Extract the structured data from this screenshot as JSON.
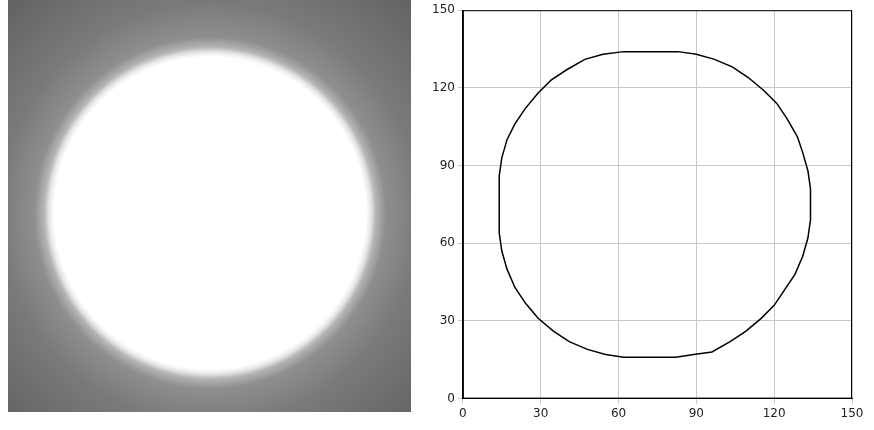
{
  "chart_data": {
    "type": "line",
    "x": [
      62,
      83,
      90,
      97,
      104,
      110,
      116,
      121,
      125,
      129,
      131,
      133,
      134,
      134,
      133,
      131,
      128,
      124,
      120,
      115,
      109,
      103,
      96,
      89,
      82,
      62,
      55,
      48,
      41,
      35,
      29,
      24,
      20,
      17,
      15,
      14,
      14,
      15,
      17,
      20,
      24,
      29,
      34,
      40,
      47,
      54,
      62
    ],
    "values": [
      134,
      134,
      133,
      131,
      128,
      124,
      119,
      114,
      108,
      101,
      95,
      88,
      81,
      69,
      62,
      55,
      48,
      42,
      36,
      31,
      26,
      22,
      18,
      17,
      16,
      16,
      17,
      19,
      22,
      26,
      31,
      37,
      43,
      50,
      57,
      64,
      86,
      93,
      100,
      106,
      112,
      118,
      123,
      127,
      131,
      133,
      134
    ],
    "color": "#000000",
    "xlim": [
      0,
      150
    ],
    "ylim": [
      0,
      150
    ],
    "xticks": [
      0,
      30,
      60,
      90,
      120,
      150
    ],
    "yticks": [
      0,
      30,
      60,
      90,
      120,
      150
    ],
    "grid": true
  }
}
